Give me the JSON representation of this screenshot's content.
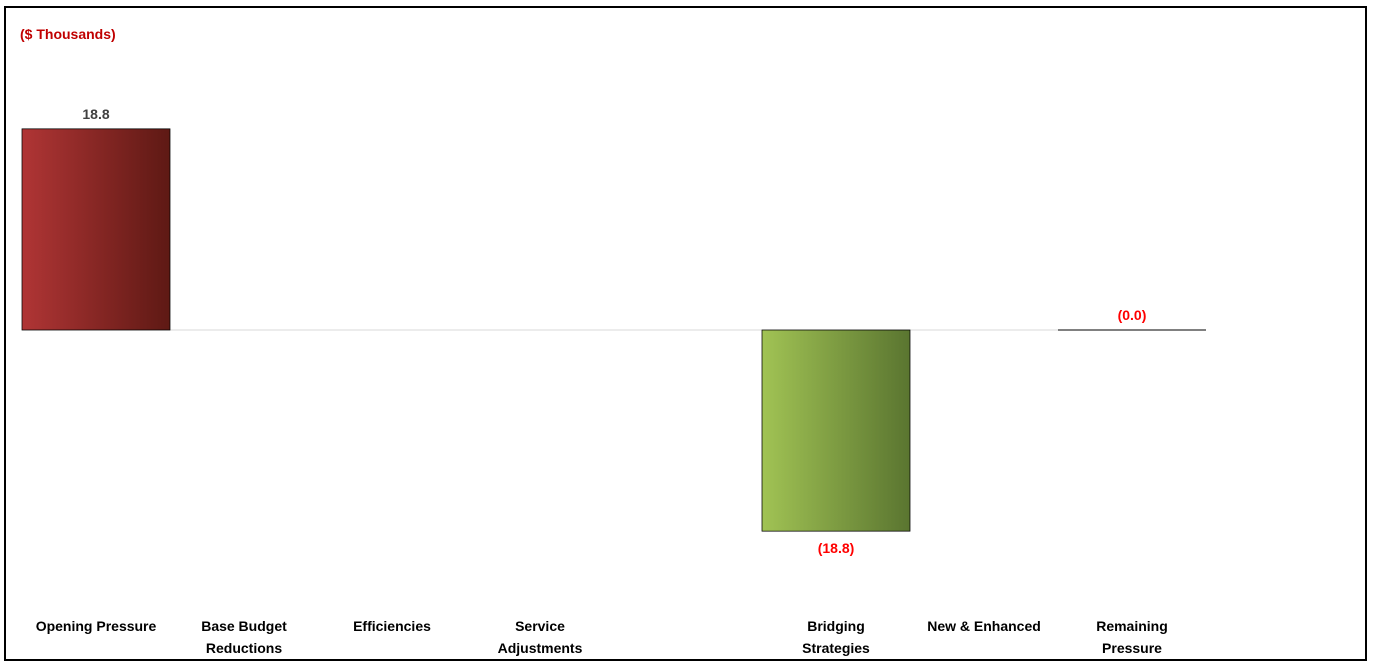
{
  "chart_data": {
    "type": "bar",
    "subtype": "waterfall",
    "units_label": "($ Thousands)",
    "categories": [
      [
        "Opening Pressure"
      ],
      [
        "Base Budget",
        "Reductions"
      ],
      [
        "Efficiencies"
      ],
      [
        "Service",
        "Adjustments"
      ],
      [
        ""
      ],
      [
        "Bridging",
        "Strategies"
      ],
      [
        "New & Enhanced"
      ],
      [
        "Remaining",
        "Pressure"
      ]
    ],
    "values": [
      18.8,
      null,
      null,
      null,
      null,
      -18.8,
      null,
      -0.0
    ],
    "data_labels": [
      "18.8",
      "",
      "",
      "",
      "",
      "(18.8)",
      "",
      "(0.0)"
    ],
    "ylim": [
      -22,
      22
    ],
    "grid": false,
    "legend": "none",
    "colors": {
      "positive_start": "#b03535",
      "positive_end": "#5e1914",
      "negative_start": "#a1c354",
      "negative_end": "#5a7530",
      "positive_label": "#404040",
      "negative_label": "#ff0000",
      "units_label": "#c00000",
      "baseline": "#d9d9d9"
    }
  }
}
